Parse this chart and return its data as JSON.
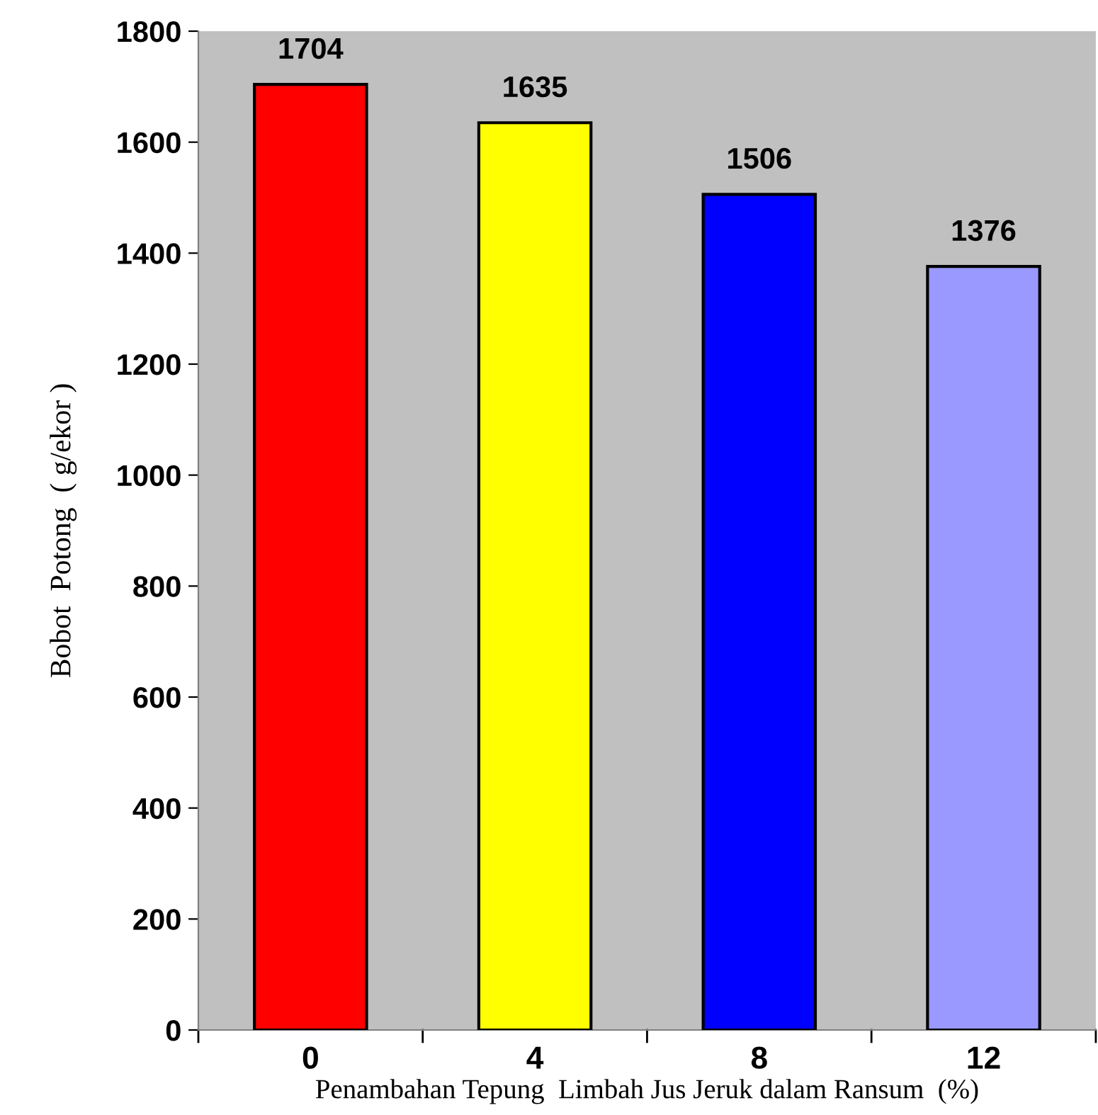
{
  "chart_data": {
    "type": "bar",
    "xlabel": "Penambahan Tepung  Limbah Jus Jeruk dalam Ransum  (%)",
    "ylabel": "Bobot  Potong  ( g/ekor )",
    "categories": [
      "0",
      "4",
      "8",
      "12"
    ],
    "values": [
      1704,
      1635,
      1506,
      1376
    ],
    "colors": [
      "#ff0000",
      "#ffff00",
      "#0000ff",
      "#9999ff"
    ],
    "ylim": [
      0,
      1800
    ],
    "yticks": [
      0,
      200,
      400,
      600,
      800,
      1000,
      1200,
      1400,
      1600,
      1800
    ],
    "data_labels": true,
    "grid": false,
    "legend": false
  }
}
